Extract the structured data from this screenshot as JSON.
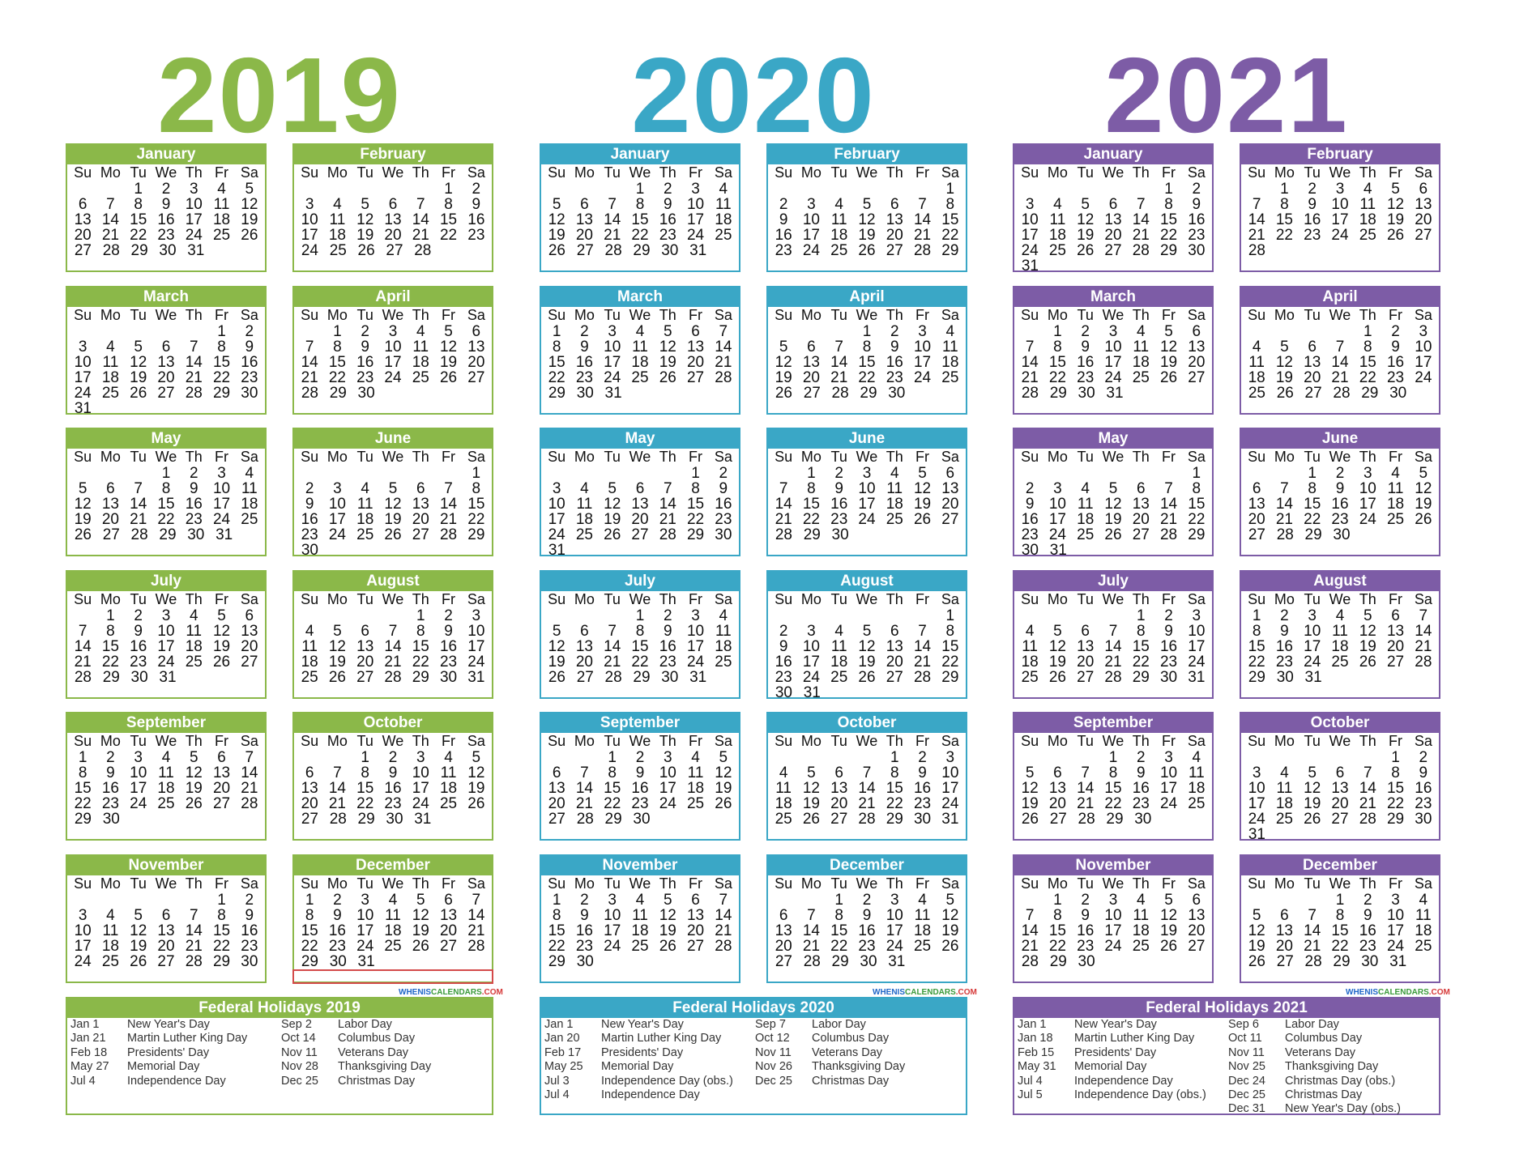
{
  "years": [
    {
      "year": "2019",
      "color": "#8bb849",
      "months": [
        {
          "name": "January",
          "start": 2,
          "days": 31
        },
        {
          "name": "February",
          "start": 5,
          "days": 28
        },
        {
          "name": "March",
          "start": 5,
          "days": 31
        },
        {
          "name": "April",
          "start": 1,
          "days": 30
        },
        {
          "name": "May",
          "start": 3,
          "days": 31
        },
        {
          "name": "June",
          "start": 6,
          "days": 30
        },
        {
          "name": "July",
          "start": 1,
          "days": 31
        },
        {
          "name": "August",
          "start": 4,
          "days": 31
        },
        {
          "name": "September",
          "start": 0,
          "days": 30
        },
        {
          "name": "October",
          "start": 2,
          "days": 31
        },
        {
          "name": "November",
          "start": 5,
          "days": 30
        },
        {
          "name": "December",
          "start": 0,
          "days": 31
        }
      ],
      "holidays_title": "Federal Holidays 2019",
      "holidays_left": [
        {
          "date": "Jan 1",
          "name": "New Year's Day"
        },
        {
          "date": "Jan 21",
          "name": "Martin Luther King Day"
        },
        {
          "date": "Feb 18",
          "name": "Presidents' Day"
        },
        {
          "date": "May 27",
          "name": "Memorial Day"
        },
        {
          "date": "Jul 4",
          "name": "Independence Day"
        }
      ],
      "holidays_right": [
        {
          "date": "Sep 2",
          "name": "Labor Day"
        },
        {
          "date": "Oct 14",
          "name": "Columbus Day"
        },
        {
          "date": "Nov 11",
          "name": "Veterans Day"
        },
        {
          "date": "Nov 28",
          "name": "Thanksgiving Day"
        },
        {
          "date": "Dec 25",
          "name": "Christmas Day"
        }
      ]
    },
    {
      "year": "2020",
      "color": "#3aa7c6",
      "months": [
        {
          "name": "January",
          "start": 3,
          "days": 31
        },
        {
          "name": "February",
          "start": 6,
          "days": 29
        },
        {
          "name": "March",
          "start": 0,
          "days": 31
        },
        {
          "name": "April",
          "start": 3,
          "days": 30
        },
        {
          "name": "May",
          "start": 5,
          "days": 31
        },
        {
          "name": "June",
          "start": 1,
          "days": 30
        },
        {
          "name": "July",
          "start": 3,
          "days": 31
        },
        {
          "name": "August",
          "start": 6,
          "days": 31
        },
        {
          "name": "September",
          "start": 2,
          "days": 30
        },
        {
          "name": "October",
          "start": 4,
          "days": 31
        },
        {
          "name": "November",
          "start": 0,
          "days": 30
        },
        {
          "name": "December",
          "start": 2,
          "days": 31
        }
      ],
      "holidays_title": "Federal Holidays 2020",
      "holidays_left": [
        {
          "date": "Jan 1",
          "name": "New Year's Day"
        },
        {
          "date": "Jan 20",
          "name": "Martin Luther King Day"
        },
        {
          "date": "Feb 17",
          "name": "Presidents' Day"
        },
        {
          "date": "May 25",
          "name": "Memorial Day"
        },
        {
          "date": "Jul 3",
          "name": "Independence Day (obs.)"
        },
        {
          "date": "Jul 4",
          "name": "Independence Day"
        }
      ],
      "holidays_right": [
        {
          "date": "Sep 7",
          "name": "Labor Day"
        },
        {
          "date": "Oct 12",
          "name": "Columbus Day"
        },
        {
          "date": "Nov 11",
          "name": "Veterans Day"
        },
        {
          "date": "Nov 26",
          "name": "Thanksgiving Day"
        },
        {
          "date": "Dec 25",
          "name": "Christmas Day"
        }
      ]
    },
    {
      "year": "2021",
      "color": "#7d5ca6",
      "months": [
        {
          "name": "January",
          "start": 5,
          "days": 31
        },
        {
          "name": "February",
          "start": 1,
          "days": 28
        },
        {
          "name": "March",
          "start": 1,
          "days": 31
        },
        {
          "name": "April",
          "start": 4,
          "days": 30
        },
        {
          "name": "May",
          "start": 6,
          "days": 31
        },
        {
          "name": "June",
          "start": 2,
          "days": 30
        },
        {
          "name": "July",
          "start": 4,
          "days": 31
        },
        {
          "name": "August",
          "start": 0,
          "days": 31
        },
        {
          "name": "September",
          "start": 3,
          "days": 30
        },
        {
          "name": "October",
          "start": 5,
          "days": 31
        },
        {
          "name": "November",
          "start": 1,
          "days": 30
        },
        {
          "name": "December",
          "start": 3,
          "days": 31
        }
      ],
      "holidays_title": "Federal Holidays 2021",
      "holidays_left": [
        {
          "date": "Jan 1",
          "name": "New Year's Day"
        },
        {
          "date": "Jan 18",
          "name": "Martin Luther King Day"
        },
        {
          "date": "Feb 15",
          "name": "Presidents' Day"
        },
        {
          "date": "May 31",
          "name": "Memorial Day"
        },
        {
          "date": "Jul 4",
          "name": "Independence Day"
        },
        {
          "date": "Jul 5",
          "name": "Independence Day (obs.)"
        }
      ],
      "holidays_right": [
        {
          "date": "Sep 6",
          "name": "Labor Day"
        },
        {
          "date": "Oct 11",
          "name": "Columbus Day"
        },
        {
          "date": "Nov 11",
          "name": "Veterans Day"
        },
        {
          "date": "Nov 25",
          "name": "Thanksgiving Day"
        },
        {
          "date": "Dec 24",
          "name": "Christmas Day (obs.)"
        },
        {
          "date": "Dec 25",
          "name": "Christmas Day"
        },
        {
          "date": "Dec 31",
          "name": "New Year's Day (obs.)"
        }
      ]
    }
  ],
  "weekdays": [
    "Su",
    "Mo",
    "Tu",
    "We",
    "Th",
    "Fr",
    "Sa"
  ],
  "watermark": {
    "part1": "WHENIS",
    "part2": "CALENDARS",
    "part3": ".COM"
  }
}
